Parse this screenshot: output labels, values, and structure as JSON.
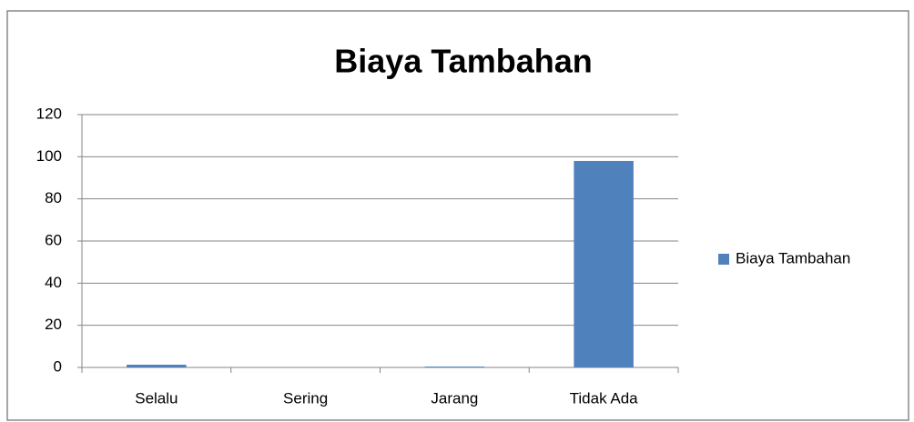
{
  "chart_data": {
    "type": "bar",
    "title": "Biaya Tambahan",
    "categories": [
      "Selalu",
      "Sering",
      "Jarang",
      "Tidak Ada"
    ],
    "series": [
      {
        "name": "Biaya Tambahan",
        "color": "#4f81bd",
        "values": [
          1.3,
          0,
          0.4,
          98
        ]
      }
    ],
    "ylim": [
      0,
      120
    ],
    "yticks": [
      0,
      20,
      40,
      60,
      80,
      100,
      120
    ],
    "grid": true,
    "legend": "right"
  }
}
